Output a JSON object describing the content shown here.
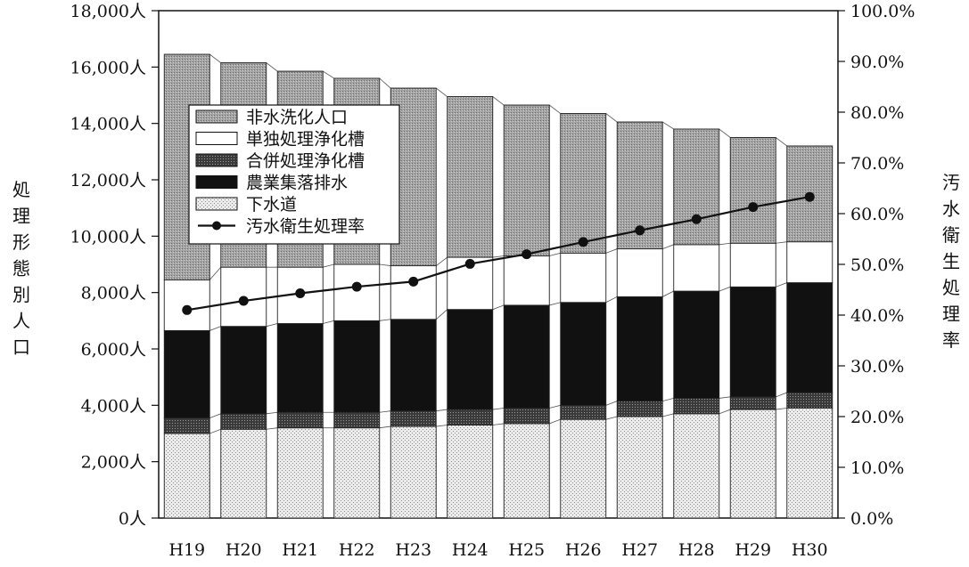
{
  "chart_data": {
    "type": "bar",
    "stacked": true,
    "title": "",
    "categories": [
      "H19",
      "H20",
      "H21",
      "H22",
      "H23",
      "H24",
      "H25",
      "H26",
      "H27",
      "H28",
      "H29",
      "H30"
    ],
    "series": [
      {
        "name": "下水道",
        "pattern": "light-dots",
        "values": [
          3000,
          3150,
          3200,
          3200,
          3250,
          3300,
          3350,
          3500,
          3600,
          3700,
          3850,
          3900
        ]
      },
      {
        "name": "合併処理浄化槽",
        "pattern": "dark-dots",
        "values": [
          550,
          550,
          550,
          550,
          550,
          550,
          550,
          500,
          550,
          550,
          450,
          550
        ]
      },
      {
        "name": "農業集落排水",
        "pattern": "black",
        "values": [
          3100,
          3100,
          3150,
          3250,
          3250,
          3550,
          3650,
          3650,
          3700,
          3800,
          3900,
          3900
        ]
      },
      {
        "name": "単独処理浄化槽",
        "pattern": "white",
        "values": [
          1800,
          2100,
          2000,
          2000,
          1900,
          1850,
          1750,
          1750,
          1700,
          1650,
          1550,
          1450
        ]
      },
      {
        "name": "非水洗化人口",
        "pattern": "medium-dots",
        "values": [
          8000,
          7250,
          6950,
          6600,
          6300,
          5700,
          5350,
          4950,
          4500,
          4100,
          3750,
          3400
        ]
      }
    ],
    "line_series": {
      "name": "汚水衛生処理率",
      "axis": "right",
      "values": [
        41.0,
        42.8,
        44.3,
        45.6,
        46.6,
        50.1,
        52.0,
        54.4,
        56.7,
        58.9,
        61.3,
        63.3
      ]
    },
    "legend_order": [
      "非水洗化人口",
      "単独処理浄化槽",
      "合併処理浄化槽",
      "農業集落排水",
      "下水道",
      "汚水衛生処理率"
    ],
    "ylabel_left": "処理形態別人口",
    "ylabel_right": "汚水衛生処理率",
    "ylim_left": [
      0,
      18000
    ],
    "ylim_right": [
      0,
      100
    ],
    "yticks_left": [
      "0人",
      "2,000人",
      "4,000人",
      "6,000人",
      "8,000人",
      "10,000人",
      "12,000人",
      "14,000人",
      "16,000人",
      "18,000人"
    ],
    "yticks_right": [
      "0.0%",
      "10.0%",
      "20.0%",
      "30.0%",
      "40.0%",
      "50.0%",
      "60.0%",
      "70.0%",
      "80.0%",
      "90.0%",
      "100.0%"
    ],
    "grid": false,
    "legend_position": "top-left"
  }
}
